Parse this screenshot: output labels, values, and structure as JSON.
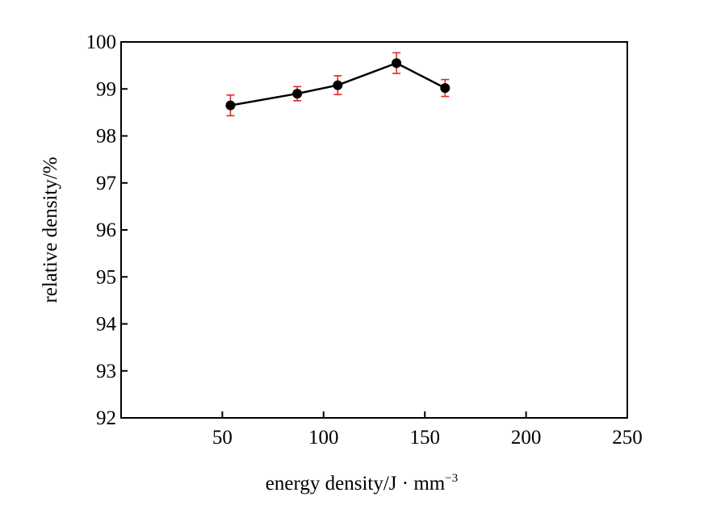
{
  "chart_data": {
    "type": "line",
    "title": "",
    "xlabel": "energy density/J · mm",
    "xlabel_superscript": "−3",
    "ylabel": "relative density/%",
    "xlim": [
      0,
      250
    ],
    "ylim": [
      92,
      100
    ],
    "x_ticks": [
      50,
      100,
      150,
      200,
      250
    ],
    "y_ticks": [
      92,
      93,
      94,
      95,
      96,
      97,
      98,
      99,
      100
    ],
    "grid": false,
    "legend": "none",
    "series": [
      {
        "x": [
          54,
          87,
          107,
          136,
          160
        ],
        "y": [
          98.65,
          98.9,
          99.08,
          99.55,
          99.02
        ],
        "err": [
          0.22,
          0.15,
          0.2,
          0.22,
          0.18
        ]
      }
    ],
    "colors": {
      "line": "#000000",
      "marker": "#000000",
      "error_bar": "#e0282b"
    }
  }
}
